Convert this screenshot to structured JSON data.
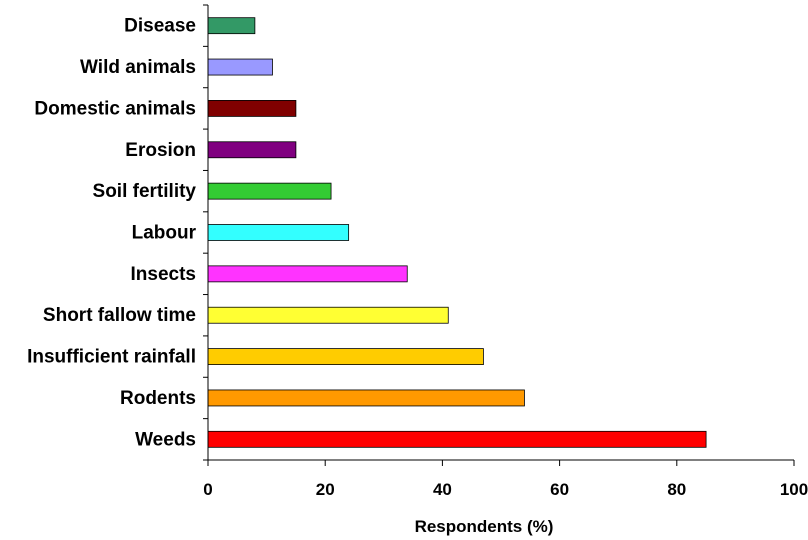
{
  "chart_data": {
    "type": "bar",
    "orientation": "horizontal",
    "title": "",
    "xlabel": "Respondents (%)",
    "ylabel": "",
    "xlim": [
      0,
      100
    ],
    "xticks": [
      0,
      20,
      40,
      60,
      80,
      100
    ],
    "grid": false,
    "legend": "none",
    "categories": [
      "Disease",
      "Wild animals",
      "Domestic animals",
      "Erosion",
      "Soil fertility",
      "Labour",
      "Insects",
      "Short fallow time",
      "Insufficient rainfall",
      "Rodents",
      "Weeds"
    ],
    "values": [
      8,
      11,
      15,
      15,
      21,
      24,
      34,
      41,
      47,
      54,
      85
    ],
    "colors": [
      "#339966",
      "#9999ff",
      "#800000",
      "#800080",
      "#33cc33",
      "#33ffff",
      "#ff33ff",
      "#ffff33",
      "#ffcc00",
      "#ff9900",
      "#ff0000"
    ]
  }
}
